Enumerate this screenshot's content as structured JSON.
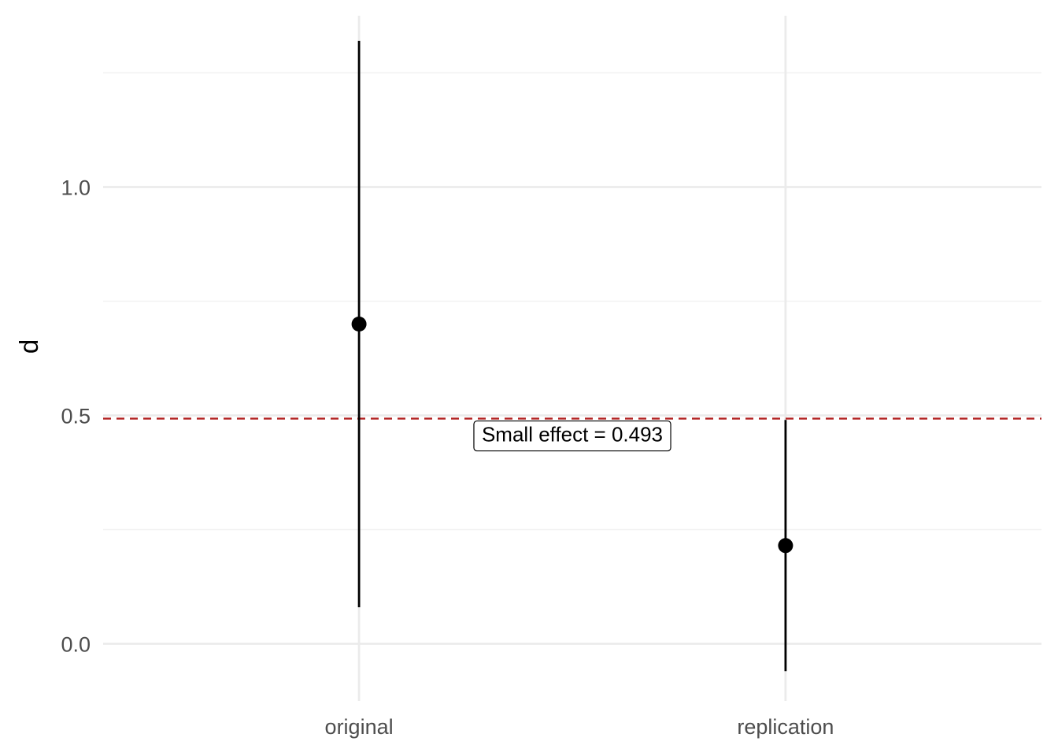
{
  "chart_data": {
    "type": "scatter",
    "title": "",
    "xlabel": "",
    "ylabel": "d",
    "categories": [
      "original",
      "replication"
    ],
    "points": [
      {
        "category": "original",
        "y": 0.7,
        "lower": 0.08,
        "upper": 1.32
      },
      {
        "category": "replication",
        "y": 0.215,
        "lower": -0.06,
        "upper": 0.49
      }
    ],
    "ylim": [
      -0.125,
      1.375
    ],
    "yticks": [
      {
        "value": 0.0,
        "label": "0.0"
      },
      {
        "value": 0.5,
        "label": "0.5"
      },
      {
        "value": 1.0,
        "label": "1.0"
      }
    ],
    "yminor": [
      0.25,
      0.75,
      1.25
    ],
    "grid": true,
    "reference_line": {
      "value": 0.493,
      "label": "Small effect = 0.493",
      "color": "#b22222",
      "style": "dashed"
    },
    "colors": {
      "point": "#000000",
      "grid_major": "#ebebeb",
      "grid_minor": "#f2f2f2",
      "tick_text": "#4d4d4d"
    }
  }
}
